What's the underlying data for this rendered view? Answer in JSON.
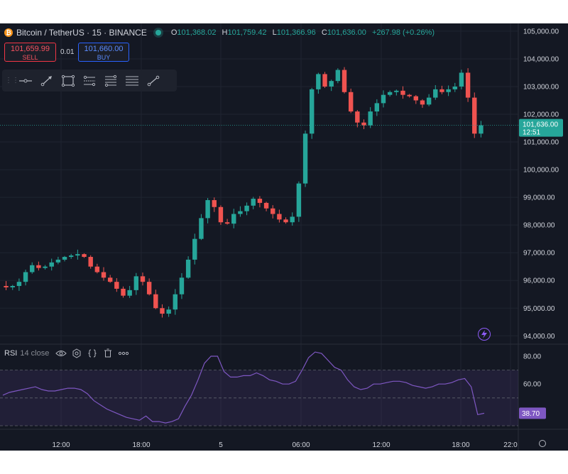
{
  "header": {
    "symbol": "Bitcoin / TetherUS · 15 · BINANCE",
    "logo_glyph": "₿",
    "ohlc": {
      "o_label": "O",
      "o": "101,368.02",
      "h_label": "H",
      "h": "101,759.42",
      "l_label": "L",
      "l": "101,366.96",
      "c_label": "C",
      "c": "101,636.00",
      "change": "+267.98 (+0.26%)"
    }
  },
  "trade": {
    "sell_price": "101,659.99",
    "sell_label": "SELL",
    "quantity": "0.01",
    "buy_price": "101,660.00",
    "buy_label": "BUY"
  },
  "toolbar": {
    "tools": [
      "horizontal-ray-tool",
      "trend-arrow-tool",
      "rectangle-tool",
      "parallel-channel-tool",
      "fib-retracement-tool",
      "pitchfork-tool",
      "line-tool"
    ]
  },
  "price_axis": {
    "labels": [
      "105,000.00",
      "104,000.00",
      "103,000.00",
      "102,000.00",
      "101,000.00",
      "100,000.00",
      "99,000.00",
      "98,000.00",
      "97,000.00",
      "96,000.00",
      "95,000.00",
      "94,000.00"
    ],
    "current_price": "101,636.00",
    "countdown": "12:51"
  },
  "rsi_pane": {
    "name": "RSI",
    "params": "14 close",
    "axis_labels": [
      "80.00",
      "60.00"
    ],
    "current_value": "38.70"
  },
  "time_axis": {
    "labels": [
      "12:00",
      "18:00",
      "5",
      "06:00",
      "12:00",
      "18:00",
      "22:0"
    ]
  },
  "colors": {
    "background": "#141823",
    "up": "#26a69a",
    "down": "#ef5350",
    "rsi_line": "#7e57c2",
    "grid": "#1f2430"
  },
  "chart_data": {
    "type": "candlestick",
    "ylim": [
      93700,
      105100
    ],
    "price_path": [
      95800,
      95750,
      95800,
      95950,
      96300,
      96550,
      96450,
      96500,
      96650,
      96750,
      96850,
      96900,
      96950,
      96850,
      96500,
      96300,
      96100,
      95950,
      95700,
      95450,
      95650,
      96150,
      95950,
      95500,
      95000,
      94800,
      94950,
      95500,
      96100,
      96750,
      97500,
      98250,
      98900,
      98650,
      98100,
      98050,
      98400,
      98500,
      98700,
      98950,
      98800,
      98600,
      98400,
      98200,
      98100,
      98300,
      99500,
      101300,
      102900,
      103450,
      103000,
      103200,
      103600,
      102800,
      102100,
      101700,
      101600,
      102100,
      102400,
      102700,
      102800,
      102850,
      102700,
      102650,
      102500,
      102350,
      102600,
      102900,
      102800,
      102900,
      103000,
      103500,
      102600,
      101300,
      101600
    ],
    "rsi_values": [
      52,
      54,
      55,
      56,
      57,
      58,
      56,
      55,
      55,
      56,
      57,
      57,
      56,
      53,
      48,
      45,
      42,
      40,
      38,
      36,
      35,
      34,
      37,
      33,
      33,
      32,
      33,
      35,
      44,
      52,
      63,
      75,
      80,
      80,
      69,
      65,
      65,
      66,
      66,
      68,
      66,
      63,
      62,
      60,
      60,
      62,
      70,
      79,
      83,
      82,
      77,
      72,
      70,
      63,
      58,
      56,
      57,
      60,
      60,
      61,
      62,
      62,
      61,
      59,
      58,
      57,
      58,
      60,
      60,
      61,
      63,
      64,
      58,
      38,
      39
    ]
  }
}
